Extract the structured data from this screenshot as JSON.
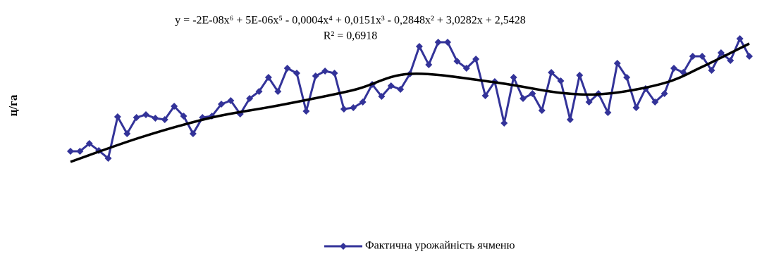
{
  "chart_data": {
    "type": "line",
    "y_label": "ц/га",
    "trendline_equation": "y = -2E-08x⁶ + 5E-06x⁵ - 0,0004x⁴ + 0,0151x³ - 0,2848x² + 3,0282x + 2,5428",
    "trendline_r2": "R² = 0,6918",
    "ylim": [
      0,
      26
    ],
    "legend": "bottom",
    "series": [
      {
        "name": "Фактична урожайність ячменю",
        "color": "#333399",
        "values": [
          8.5,
          8.5,
          9.6,
          8.6,
          7.5,
          13.4,
          11.0,
          13.3,
          13.7,
          13.2,
          13.0,
          14.9,
          13.5,
          11.0,
          13.3,
          13.5,
          15.2,
          15.7,
          13.8,
          16.0,
          17.0,
          19.0,
          17.0,
          20.3,
          19.6,
          14.2,
          19.2,
          19.9,
          19.6,
          14.5,
          14.7,
          15.5,
          18.0,
          16.3,
          17.8,
          17.3,
          19.5,
          23.4,
          20.8,
          24.0,
          24.0,
          21.3,
          20.3,
          21.6,
          16.4,
          18.4,
          12.5,
          19.0,
          16.0,
          16.7,
          14.3,
          19.7,
          18.5,
          13.0,
          19.3,
          15.5,
          16.7,
          14.0,
          21.0,
          19.0,
          14.7,
          17.4,
          15.5,
          16.7,
          20.3,
          19.7,
          22.0,
          22.0,
          20.0,
          22.5,
          21.4,
          24.5,
          22.0
        ]
      }
    ],
    "trendline": {
      "color": "#000000",
      "x": [
        0,
        7.5,
        15,
        22,
        30,
        36,
        45,
        52,
        57,
        63,
        67,
        72
      ],
      "values": [
        7.0,
        10.5,
        13.3,
        15.0,
        17.2,
        19.5,
        18.3,
        16.8,
        16.7,
        18.2,
        20.5,
        23.8
      ]
    }
  }
}
